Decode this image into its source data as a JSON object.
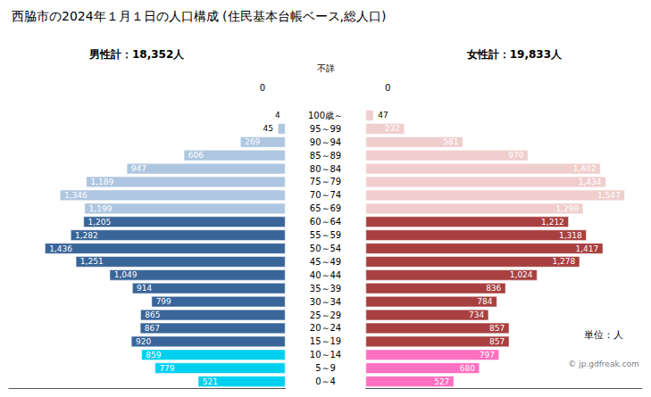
{
  "chart_data": {
    "type": "bar",
    "orientation": "horizontal",
    "title": "西脇市の2024年１月１日の人口構成 (住民基本台帳ベース,総人口)",
    "male_total_label": "男性計：18,352人",
    "female_total_label": "女性計：19,833人",
    "unknown_label": "不詳",
    "unknown_values": [
      0,
      0
    ],
    "unit_label": "単位：人",
    "source_label": "© jp.gdfreak.com",
    "categories": [
      "100歳～",
      "95～99",
      "90～94",
      "85～89",
      "80～84",
      "75～79",
      "70～74",
      "65～69",
      "60～64",
      "55～59",
      "50～54",
      "45～49",
      "40～44",
      "35～39",
      "30～34",
      "25～29",
      "20～24",
      "15～19",
      "10～14",
      "5～9",
      "0～4"
    ],
    "series": [
      {
        "values": [
          4,
          45,
          269,
          606,
          947,
          1189,
          1346,
          1199,
          1205,
          1282,
          1436,
          1251,
          1049,
          914,
          799,
          865,
          867,
          920,
          859,
          779,
          521
        ],
        "value_labels": [
          "4",
          "45",
          "269",
          "606",
          "947",
          "1,189",
          "1,346",
          "1,199",
          "1,205",
          "1,282",
          "1,436",
          "1,251",
          "1,049",
          "914",
          "799",
          "865",
          "867",
          "920",
          "859",
          "779",
          "521"
        ],
        "colors": [
          "#aec6df",
          "#aec6df",
          "#aec6df",
          "#aec6df",
          "#aec6df",
          "#aec6df",
          "#aec6df",
          "#aec6df",
          "#3a6599",
          "#3a6599",
          "#3a6599",
          "#3a6599",
          "#3a6599",
          "#3a6599",
          "#3a6599",
          "#3a6599",
          "#3a6599",
          "#3a6599",
          "#00d0f0",
          "#00d0f0",
          "#00d0f0"
        ]
      },
      {
        "values": [
          47,
          232,
          581,
          970,
          1402,
          1434,
          1547,
          1299,
          1212,
          1318,
          1417,
          1278,
          1024,
          836,
          784,
          734,
          857,
          857,
          797,
          680,
          527
        ],
        "value_labels": [
          "47",
          "232",
          "581",
          "970",
          "1,402",
          "1,434",
          "1,547",
          "1,299",
          "1,212",
          "1,318",
          "1,417",
          "1,278",
          "1,024",
          "836",
          "784",
          "734",
          "857",
          "857",
          "797",
          "680",
          "527"
        ],
        "colors": [
          "#f0cece",
          "#f0cece",
          "#f0cece",
          "#f0cece",
          "#f0cece",
          "#f0cece",
          "#f0cece",
          "#f0cece",
          "#a84040",
          "#a84040",
          "#a84040",
          "#a84040",
          "#a84040",
          "#a84040",
          "#a84040",
          "#a84040",
          "#a84040",
          "#a84040",
          "#ff70c0",
          "#ff70c0",
          "#ff70c0"
        ]
      }
    ],
    "xlim": [
      0,
      1650
    ],
    "grid": false,
    "data_labels": true,
    "tick_labels": "y"
  }
}
